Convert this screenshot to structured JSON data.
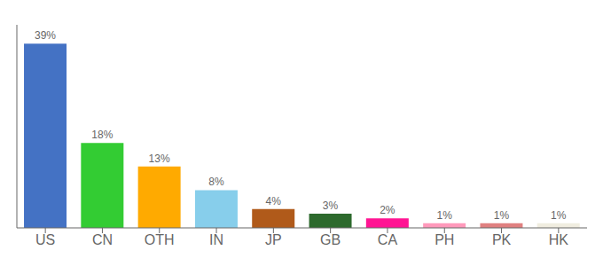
{
  "chart_data": {
    "type": "bar",
    "categories": [
      "US",
      "CN",
      "OTH",
      "IN",
      "JP",
      "GB",
      "CA",
      "PH",
      "PK",
      "HK"
    ],
    "values": [
      39,
      18,
      13,
      8,
      4,
      3,
      2,
      1,
      1,
      1
    ],
    "value_labels": [
      "39%",
      "18%",
      "13%",
      "8%",
      "4%",
      "3%",
      "2%",
      "1%",
      "1%",
      "1%"
    ],
    "colors": [
      "#4472c4",
      "#33cc33",
      "#ffaa00",
      "#87ceeb",
      "#b05a1a",
      "#2d6a2d",
      "#ff1493",
      "#ff99bb",
      "#e08080",
      "#f0ede0"
    ],
    "ylim": [
      0,
      43
    ],
    "data_labels": true,
    "tick_labels": "x",
    "grid": false
  }
}
